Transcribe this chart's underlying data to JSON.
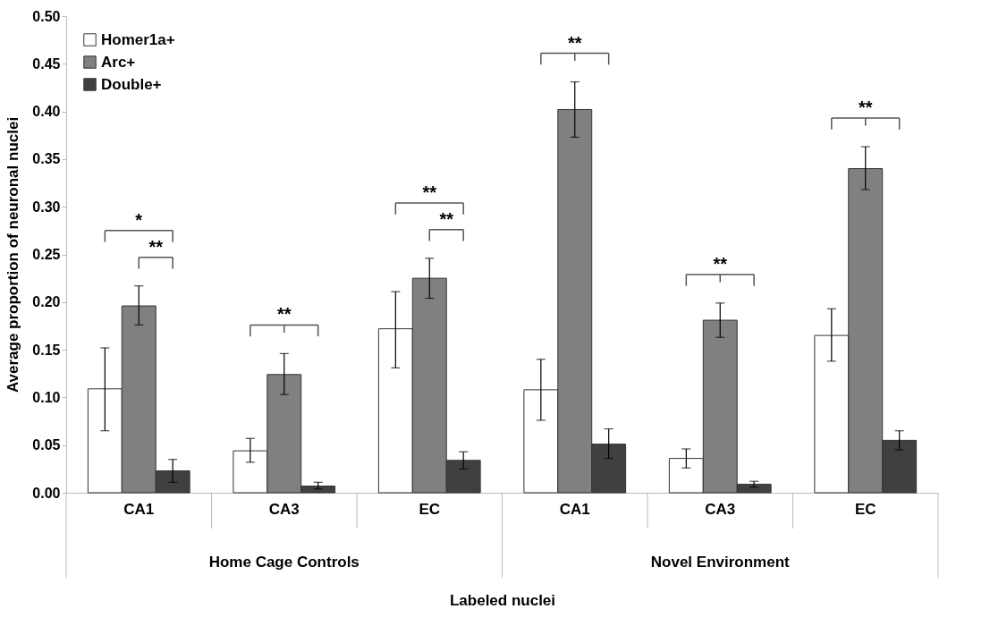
{
  "chart_data": {
    "type": "bar",
    "xlabel": "Labeled nuclei",
    "ylabel": "Average proportion of neuronal nuclei",
    "categories": [
      "CA1",
      "CA3",
      "EC",
      "CA1",
      "CA3",
      "EC"
    ],
    "series": [
      {
        "name": "Homer1a+",
        "color": "#ffffff",
        "values": [
          0.109,
          0.044,
          0.172,
          0.108,
          0.036,
          0.165
        ],
        "errors": [
          [
            0.065,
            0.152
          ],
          [
            0.032,
            0.057
          ],
          [
            0.131,
            0.211
          ],
          [
            0.076,
            0.14
          ],
          [
            0.026,
            0.046
          ],
          [
            0.138,
            0.193
          ]
        ]
      },
      {
        "name": "Arc+",
        "color": "#808080",
        "values": [
          0.196,
          0.124,
          0.225,
          0.402,
          0.181,
          0.34
        ],
        "errors": [
          [
            0.176,
            0.217
          ],
          [
            0.103,
            0.146
          ],
          [
            0.204,
            0.246
          ],
          [
            0.373,
            0.431
          ],
          [
            0.163,
            0.199
          ],
          [
            0.318,
            0.363
          ]
        ]
      },
      {
        "name": "Double+",
        "color": "#404040",
        "values": [
          0.023,
          0.007,
          0.034,
          0.051,
          0.009,
          0.055
        ],
        "errors": [
          [
            0.011,
            0.035
          ],
          [
            0.004,
            0.011
          ],
          [
            0.025,
            0.043
          ],
          [
            0.036,
            0.067
          ],
          [
            0.006,
            0.012
          ],
          [
            0.045,
            0.065
          ]
        ]
      }
    ],
    "ylim": [
      0,
      0.5
    ],
    "yticks": [
      {
        "value": 0,
        "label": "0.00"
      },
      0.05,
      {
        "value": 0.1,
        "label": "0.10"
      },
      0.15,
      {
        "value": 0.2,
        "label": "0.20"
      },
      0.25,
      {
        "value": 0.3,
        "label": "0.30"
      },
      0.35,
      {
        "value": 0.4,
        "label": "0.40"
      },
      0.45,
      {
        "value": 0.5,
        "label": "0.50"
      }
    ],
    "legend": "top left",
    "annotations": [
      "*",
      "**",
      "**",
      "**",
      "**",
      "**",
      "**",
      "**",
      "Home Cage Controls",
      "Novel Environment"
    ]
  }
}
